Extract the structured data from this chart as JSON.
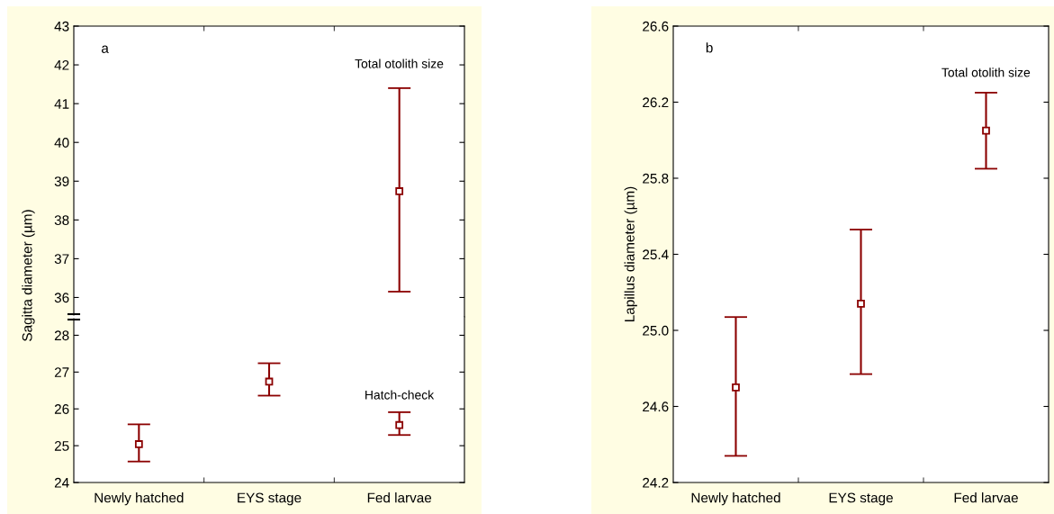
{
  "chart_data": [
    {
      "type": "scatter",
      "ylim": [
        35.5,
        43
      ],
      "yticks": [
        36,
        37,
        38,
        39,
        40,
        41,
        42,
        43
      ],
      "tick_labels": "y",
      "marker": "square",
      "grid": false,
      "series": [
        {
          "color": "#8b0000",
          "values": [
            null,
            null,
            38.74
          ],
          "errors": [
            null,
            null,
            [
              36.15,
              41.4
            ]
          ]
        }
      ],
      "annotations": [
        "a",
        "Total otolith size"
      ]
    },
    {
      "type": "scatter",
      "categories": [
        "Newly hatched",
        "EYS stage",
        "Fed larvae"
      ],
      "ylim": [
        24,
        28.5
      ],
      "yticks": [
        24,
        25,
        26,
        27,
        28
      ],
      "ylabel": "Sagitta diameter (µm)",
      "marker": "square",
      "grid": false,
      "series": [
        {
          "color": "#8b0000",
          "values": [
            25.04,
            26.74,
            25.56
          ],
          "errors": [
            [
              24.57,
              25.58
            ],
            [
              26.36,
              27.24
            ],
            [
              25.29,
              25.91
            ]
          ]
        }
      ],
      "annotations": [
        "Hatch-check"
      ]
    },
    {
      "type": "scatter",
      "categories": [
        "Newly hatched",
        "EYS stage",
        "Fed larvae"
      ],
      "ylim": [
        24.2,
        26.6
      ],
      "yticks": [
        {
          "value": 24.2,
          "label": "24.2"
        },
        {
          "value": 24.6,
          "label": "24.6"
        },
        {
          "value": 25.0,
          "label": "25.0"
        },
        {
          "value": 25.4,
          "label": "25.4"
        },
        {
          "value": 25.8,
          "label": "25.8"
        },
        {
          "value": 26.2,
          "label": "26.2"
        },
        {
          "value": 26.6,
          "label": "26.6"
        }
      ],
      "ylabel": "Lapillus diameter (µm)",
      "marker": "square",
      "grid": false,
      "series": [
        {
          "color": "#8b0000",
          "values": [
            24.7,
            25.14,
            26.05
          ],
          "errors": [
            [
              24.34,
              25.07
            ],
            [
              24.77,
              25.53
            ],
            [
              25.85,
              26.25
            ]
          ]
        }
      ],
      "annotations": [
        "b",
        "Total otolith size"
      ]
    }
  ]
}
